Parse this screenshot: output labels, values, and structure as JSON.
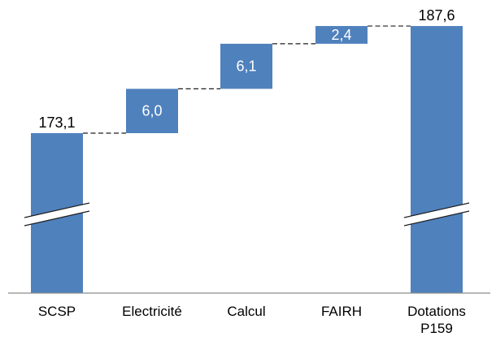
{
  "chart_data": {
    "type": "bar",
    "subtype": "waterfall",
    "axis_break": true,
    "categories": [
      {
        "lines": [
          "SCSP"
        ]
      },
      {
        "lines": [
          "Electricité"
        ]
      },
      {
        "lines": [
          "Calcul"
        ]
      },
      {
        "lines": [
          "FAIRH"
        ]
      },
      {
        "lines": [
          "Dotations",
          "P159"
        ]
      }
    ],
    "steps": [
      {
        "kind": "total",
        "value": 173.1,
        "label": "173,1"
      },
      {
        "kind": "increment",
        "value": 6.0,
        "label": "6,0"
      },
      {
        "kind": "increment",
        "value": 6.1,
        "label": "6,1"
      },
      {
        "kind": "increment",
        "value": 2.4,
        "label": "2,4"
      },
      {
        "kind": "total",
        "value": 187.6,
        "label": "187,6"
      }
    ],
    "bar_color": "#4f81bd",
    "grid": false,
    "title": "",
    "xlabel": "",
    "ylabel": ""
  }
}
